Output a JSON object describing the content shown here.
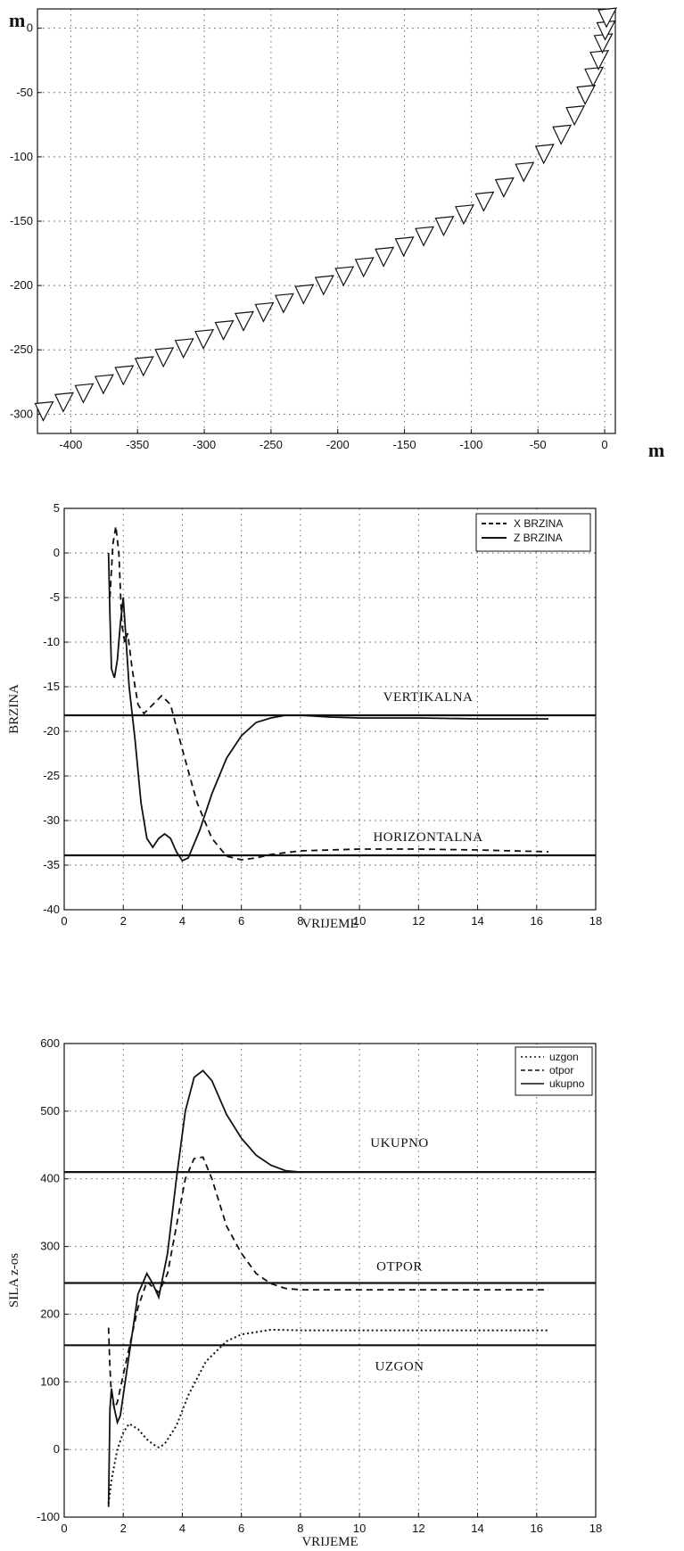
{
  "chart_data": [
    {
      "type": "scatter",
      "marker": "down-triangle",
      "title": "",
      "xlabel": "",
      "ylabel": "",
      "unit_y": "m",
      "unit_x": "m",
      "xlim": [
        -425,
        8
      ],
      "ylim": [
        -315,
        15
      ],
      "xticks": [
        -400,
        -350,
        -300,
        -250,
        -200,
        -150,
        -100,
        -50,
        0
      ],
      "yticks": [
        0,
        -50,
        -100,
        -150,
        -200,
        -250,
        -300
      ],
      "grid": true,
      "x": [
        -420,
        -405,
        -390,
        -375,
        -360,
        -345,
        -330,
        -315,
        -300,
        -285,
        -270,
        -255,
        -240,
        -225,
        -210,
        -195,
        -180,
        -165,
        -150,
        -135,
        -120,
        -105,
        -90,
        -75,
        -60,
        -45,
        -32,
        -22,
        -14,
        -8,
        -4,
        -1,
        1,
        2
      ],
      "y": [
        -298,
        -291,
        -284,
        -277,
        -270,
        -263,
        -256,
        -249,
        -242,
        -235,
        -228,
        -221,
        -214,
        -207,
        -200,
        -193,
        -186,
        -178,
        -170,
        -162,
        -154,
        -145,
        -135,
        -124,
        -112,
        -98,
        -83,
        -68,
        -52,
        -38,
        -25,
        -12,
        -2,
        8
      ]
    },
    {
      "type": "line",
      "title": "",
      "xlabel": "VRIJEME",
      "ylabel": "BRZINA",
      "xlim": [
        0,
        18
      ],
      "ylim": [
        -40,
        5
      ],
      "xticks": [
        0,
        2,
        4,
        6,
        8,
        10,
        12,
        14,
        16,
        18
      ],
      "yticks": [
        5,
        0,
        -5,
        -10,
        -15,
        -20,
        -25,
        -30,
        -35,
        -40
      ],
      "grid": true,
      "legend": "top-right",
      "series": [
        {
          "name": "X BRZINA",
          "style": "dashed",
          "x": [
            1.55,
            1.65,
            1.75,
            1.85,
            1.95,
            2.05,
            2.15,
            2.3,
            2.5,
            2.7,
            3.0,
            3.3,
            3.6,
            4.0,
            4.5,
            5.0,
            5.5,
            6.0,
            6.5,
            7.0,
            8.0,
            9.0,
            10.0,
            12.0,
            14.0,
            16.4
          ],
          "y": [
            -5,
            1,
            3,
            0,
            -8,
            -10,
            -9,
            -13,
            -17,
            -18,
            -17,
            -16,
            -17,
            -22,
            -28,
            -32,
            -34,
            -34.4,
            -34.2,
            -33.8,
            -33.4,
            -33.3,
            -33.2,
            -33.2,
            -33.3,
            -33.5
          ]
        },
        {
          "name": "Z BRZINA",
          "style": "solid",
          "x": [
            1.5,
            1.55,
            1.6,
            1.7,
            1.8,
            1.9,
            2.0,
            2.1,
            2.2,
            2.4,
            2.6,
            2.8,
            3.0,
            3.2,
            3.4,
            3.6,
            3.8,
            4.0,
            4.2,
            4.6,
            5.0,
            5.5,
            6.0,
            6.5,
            7.0,
            7.5,
            8.0,
            9.0,
            10.0,
            12.0,
            14.0,
            16.4
          ],
          "y": [
            0,
            -7,
            -13,
            -14,
            -12,
            -8,
            -5,
            -10,
            -15,
            -21,
            -28,
            -32,
            -33,
            -32,
            -31.5,
            -32,
            -33.5,
            -34.5,
            -34.2,
            -31,
            -27,
            -23,
            -20.5,
            -19,
            -18.5,
            -18.2,
            -18.2,
            -18.4,
            -18.5,
            -18.5,
            -18.6,
            -18.6
          ]
        },
        {
          "name": "VERTIKALNA",
          "style": "solid-ref",
          "x": [
            0,
            18
          ],
          "y": [
            -18.2,
            -18.2
          ]
        },
        {
          "name": "HORIZONTALNA",
          "style": "solid-ref",
          "x": [
            0,
            18
          ],
          "y": [
            -33.9,
            -33.9
          ]
        }
      ],
      "annotations": [
        "VERTIKALNA",
        "HORIZONTALNA"
      ]
    },
    {
      "type": "line",
      "title": "",
      "xlabel": "VRIJEME",
      "ylabel": "SILA z-os",
      "xlim": [
        0,
        18
      ],
      "ylim": [
        -100,
        600
      ],
      "xticks": [
        0,
        2,
        4,
        6,
        8,
        10,
        12,
        14,
        16,
        18
      ],
      "yticks": [
        600,
        500,
        400,
        300,
        200,
        100,
        0,
        -100
      ],
      "grid": true,
      "legend": "top-right",
      "series": [
        {
          "name": "uzgon",
          "style": "dotted",
          "x": [
            1.5,
            1.6,
            1.8,
            2.0,
            2.2,
            2.5,
            2.8,
            3.0,
            3.2,
            3.4,
            3.8,
            4.2,
            4.8,
            5.5,
            6.0,
            7.0,
            8.0,
            10.0,
            12.0,
            14.0,
            16.4
          ],
          "y": [
            -80,
            -45,
            0,
            25,
            38,
            30,
            15,
            8,
            3,
            8,
            35,
            80,
            130,
            160,
            170,
            177,
            176,
            176,
            176,
            176,
            176
          ]
        },
        {
          "name": "otpor",
          "style": "dashed",
          "x": [
            1.5,
            1.55,
            1.6,
            1.7,
            1.8,
            1.9,
            2.0,
            2.2,
            2.5,
            2.8,
            3.0,
            3.2,
            3.5,
            3.8,
            4.1,
            4.4,
            4.7,
            5.0,
            5.5,
            6.0,
            6.5,
            7.0,
            7.5,
            8.0,
            9.0,
            10.0,
            12.0,
            14.0,
            16.4
          ],
          "y": [
            180,
            120,
            80,
            60,
            70,
            90,
            110,
            150,
            210,
            248,
            240,
            232,
            260,
            330,
            400,
            430,
            432,
            400,
            330,
            290,
            260,
            245,
            238,
            236,
            236,
            236,
            236,
            236,
            236
          ]
        },
        {
          "name": "ukupno",
          "style": "solid",
          "x": [
            1.5,
            1.55,
            1.6,
            1.7,
            1.8,
            1.9,
            2.0,
            2.2,
            2.5,
            2.8,
            3.0,
            3.2,
            3.5,
            3.8,
            4.1,
            4.4,
            4.7,
            5.0,
            5.5,
            6.0,
            6.5,
            7.0,
            7.5,
            8.0,
            9.0,
            10.0,
            12.0,
            14.0,
            16.4
          ],
          "y": [
            -85,
            60,
            90,
            60,
            40,
            50,
            80,
            140,
            230,
            260,
            245,
            225,
            290,
            400,
            500,
            550,
            560,
            545,
            495,
            460,
            435,
            420,
            412,
            410,
            410,
            410,
            410,
            410,
            410
          ]
        },
        {
          "name": "UKUPNO",
          "style": "solid-ref",
          "x": [
            0,
            18
          ],
          "y": [
            410,
            410
          ]
        },
        {
          "name": "OTPOR",
          "style": "solid-ref",
          "x": [
            0,
            18
          ],
          "y": [
            246,
            246
          ]
        },
        {
          "name": "UZGON",
          "style": "solid-ref",
          "x": [
            0,
            18
          ],
          "y": [
            154,
            154
          ]
        }
      ],
      "annotations": [
        "UKUPNO",
        "OTPOR",
        "UZGON"
      ]
    }
  ]
}
